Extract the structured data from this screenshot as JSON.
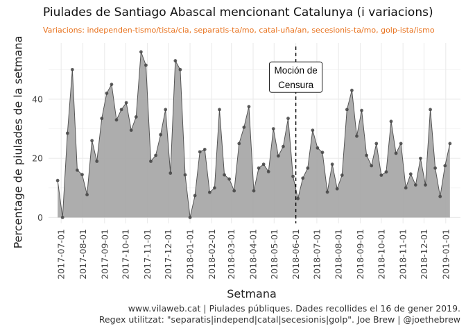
{
  "title": "Piulades de Santiago Abascal mencionant Catalunya (i variacions)",
  "subtitle": "Variacions: independen-tismo/tista/cia, separatis-ta/mo, catal-uña/an, secesionis-ta/mo, golp-ista/ismo",
  "caption": {
    "line1": "www.vilaweb.cat | Piulades públiques. Dades recollides el 16 de gener 2019.",
    "line2": "Regex utilitzat: \"separatis|independ|catal|secesionis|golp\". Joe Brew | @joethebrew"
  },
  "chart_data": {
    "type": "area",
    "title": "Piulades de Santiago Abascal mencionant Catalunya (i variacions)",
    "xlabel": "Setmana",
    "ylabel": "Percentage de piulades de la setmana",
    "x_tick_labels": [
      "2017-07-01",
      "2017-08-01",
      "2017-09-01",
      "2017-10-01",
      "2017-11-01",
      "2017-12-01",
      "2018-01-01",
      "2018-02-01",
      "2018-03-01",
      "2018-04-01",
      "2018-05-01",
      "2018-06-01",
      "2018-07-01",
      "2018-08-01",
      "2018-09-01",
      "2018-10-01",
      "2018-11-01",
      "2018-12-01",
      "2019-01-01"
    ],
    "y_ticks": [
      0,
      20,
      40
    ],
    "ylim": [
      -2,
      59
    ],
    "grid": true,
    "fill_color": "#a9a9a9",
    "line_color": "#555555",
    "point_color": "#444444",
    "x": [
      "2017-06-26",
      "2017-07-03",
      "2017-07-10",
      "2017-07-17",
      "2017-07-24",
      "2017-07-31",
      "2017-08-07",
      "2017-08-14",
      "2017-08-21",
      "2017-08-28",
      "2017-09-04",
      "2017-09-11",
      "2017-09-18",
      "2017-09-25",
      "2017-10-02",
      "2017-10-09",
      "2017-10-16",
      "2017-10-23",
      "2017-10-30",
      "2017-11-06",
      "2017-11-13",
      "2017-11-20",
      "2017-11-27",
      "2017-12-04",
      "2017-12-11",
      "2017-12-18",
      "2017-12-25",
      "2018-01-01",
      "2018-01-08",
      "2018-01-15",
      "2018-01-22",
      "2018-01-29",
      "2018-02-05",
      "2018-02-12",
      "2018-02-19",
      "2018-02-26",
      "2018-03-05",
      "2018-03-12",
      "2018-03-19",
      "2018-03-26",
      "2018-04-02",
      "2018-04-09",
      "2018-04-16",
      "2018-04-23",
      "2018-04-30",
      "2018-05-07",
      "2018-05-14",
      "2018-05-21",
      "2018-05-28",
      "2018-06-04",
      "2018-06-11",
      "2018-06-18",
      "2018-06-25",
      "2018-07-02",
      "2018-07-09",
      "2018-07-16",
      "2018-07-23",
      "2018-07-30",
      "2018-08-06",
      "2018-08-13",
      "2018-08-20",
      "2018-08-27",
      "2018-09-03",
      "2018-09-10",
      "2018-09-17",
      "2018-09-24",
      "2018-10-01",
      "2018-10-08",
      "2018-10-15",
      "2018-10-22",
      "2018-10-29",
      "2018-11-05",
      "2018-11-12",
      "2018-11-19",
      "2018-11-26",
      "2018-12-03",
      "2018-12-10",
      "2018-12-17",
      "2018-12-24",
      "2018-12-31",
      "2019-01-07"
    ],
    "values": [
      12.5,
      0,
      28.5,
      50,
      16,
      14.5,
      7.7,
      26,
      19,
      33.5,
      42,
      45,
      33,
      36.5,
      38.8,
      29.5,
      34,
      56,
      51.5,
      19,
      21,
      28,
      36.5,
      15,
      53,
      50,
      14.4,
      0,
      7.4,
      22.2,
      23,
      8.5,
      10,
      36.5,
      14.4,
      13,
      9,
      25,
      30.5,
      37.5,
      9,
      16.7,
      18,
      15.5,
      30,
      20.8,
      24,
      33.5,
      13.9,
      6.4,
      13.3,
      16.7,
      29.5,
      23.5,
      22,
      8.6,
      18,
      9.7,
      14.3,
      36.5,
      43,
      27.5,
      36.2,
      21,
      17.5,
      25,
      14.3,
      15.4,
      32.5,
      21.7,
      25,
      10,
      14.7,
      11,
      20,
      11,
      36.5,
      16.7,
      7.1,
      17.5,
      25
    ],
    "annotations": [
      {
        "type": "vline",
        "x": "2018-06-01",
        "style": "dashed"
      },
      {
        "type": "label",
        "x": "2018-06-01",
        "y": 47,
        "lines": [
          "Moción de",
          "Censura"
        ]
      }
    ]
  }
}
